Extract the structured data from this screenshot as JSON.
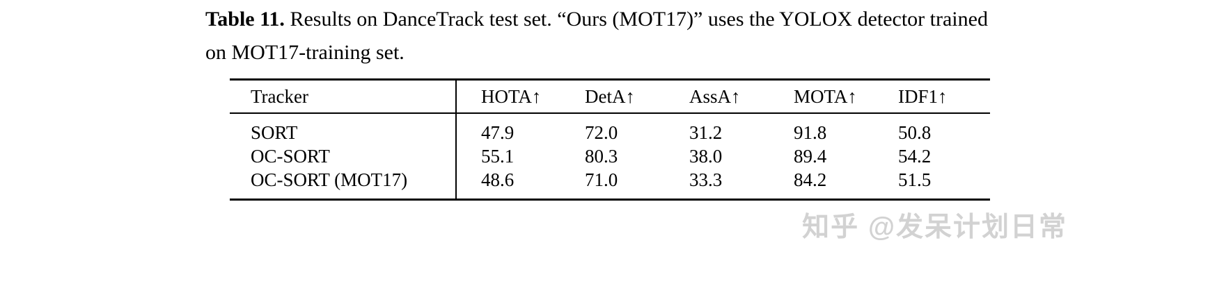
{
  "caption": {
    "label": "Table 11.",
    "text": " Results on DanceTrack test set. “Ours (MOT17)” uses the YOLOX detector trained on MOT17-training set."
  },
  "table": {
    "headers": [
      "Tracker",
      "HOTA↑",
      "DetA↑",
      "AssA↑",
      "MOTA↑",
      "IDF1↑"
    ],
    "rows": [
      [
        "SORT",
        "47.9",
        "72.0",
        "31.2",
        "91.8",
        "50.8"
      ],
      [
        "OC-SORT",
        "55.1",
        "80.3",
        "38.0",
        "89.4",
        "54.2"
      ],
      [
        "OC-SORT (MOT17)",
        "48.6",
        "71.0",
        "33.3",
        "84.2",
        "51.5"
      ]
    ]
  },
  "watermark": "知乎 @发呆计划日常",
  "colors": {
    "text": "#000000",
    "rule": "#000000",
    "watermark": "#d2d2d2",
    "background": "#ffffff"
  }
}
